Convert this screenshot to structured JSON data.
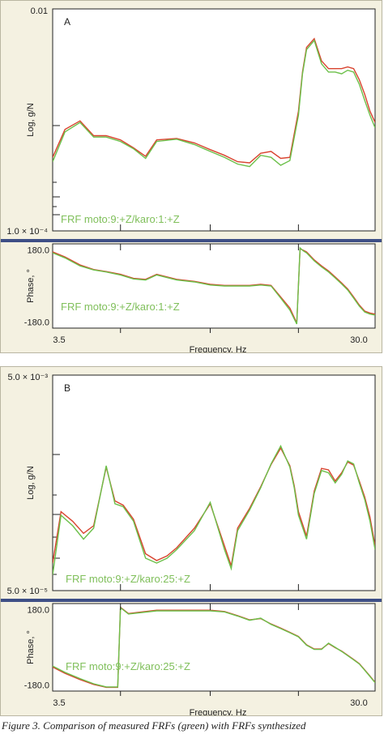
{
  "colors": {
    "measured": "#6cc04a",
    "synthesized": "#d9432f",
    "divider": "#3e4f86",
    "legend_text": "#7fbf5a",
    "plot_bg": "#ffffff",
    "panel_bg": "#f4f1e1"
  },
  "caption": "Figure 3. Comparison of measured FRFs (green) with FRFs synthesized",
  "chart_data": [
    {
      "type": "line",
      "panel_label": "A",
      "legend": "FRF moto:9:+Z/karo:1:+Z",
      "xlabel": "Frequency, Hz",
      "x_ticks": [
        "3.5",
        "30.0"
      ],
      "magnitude": {
        "ylabel": "Log, g/N",
        "y_ticks": [
          "0.01",
          "1.0 × 10⁻⁴"
        ],
        "y_scale": "log",
        "ylim": [
          0.0001,
          0.01
        ],
        "x": [
          3.5,
          3.8,
          4.2,
          4.6,
          5.0,
          5.5,
          6.0,
          6.5,
          7.0,
          8.0,
          9.0,
          10.0,
          11.0,
          12.0,
          13.0,
          14.0,
          15.0,
          16.0,
          17.0,
          18.0,
          18.5,
          19.0,
          20.0,
          21.0,
          22.0,
          23.0,
          24.0,
          25.0,
          26.0,
          27.0,
          28.0,
          29.0,
          30.0
        ],
        "series": [
          {
            "name": "measured",
            "values": [
              0.00042,
              0.00078,
              0.00095,
              0.0007,
              0.0007,
              0.00064,
              0.00055,
              0.00045,
              0.00064,
              0.00067,
              0.0006,
              0.00052,
              0.00046,
              0.0004,
              0.00038,
              0.00048,
              0.00046,
              0.00039,
              0.00043,
              0.0011,
              0.0026,
              0.0043,
              0.0052,
              0.0032,
              0.0027,
              0.0027,
              0.0026,
              0.0028,
              0.0027,
              0.0021,
              0.0015,
              0.0011,
              0.00085
            ]
          },
          {
            "name": "synthesized",
            "values": [
              0.00046,
              0.00082,
              0.00098,
              0.00072,
              0.00072,
              0.00066,
              0.00056,
              0.00047,
              0.00066,
              0.00068,
              0.00062,
              0.00054,
              0.00048,
              0.00042,
              0.00041,
              0.0005,
              0.00052,
              0.00045,
              0.00046,
              0.0012,
              0.0027,
              0.0045,
              0.0054,
              0.0034,
              0.0029,
              0.0029,
              0.0029,
              0.003,
              0.0029,
              0.0023,
              0.0017,
              0.0012,
              0.00095
            ]
          }
        ]
      },
      "phase": {
        "ylabel": "Phase, °",
        "y_ticks": [
          "180.0",
          "-180.0"
        ],
        "ylim": [
          -210,
          210
        ],
        "x": [
          3.5,
          3.8,
          4.2,
          4.6,
          5.0,
          5.5,
          6.0,
          6.5,
          7.0,
          8.0,
          9.0,
          10.0,
          11.0,
          12.0,
          13.0,
          14.0,
          15.0,
          16.0,
          17.0,
          17.8,
          18.2,
          18.6,
          19.0,
          20.0,
          21.0,
          22.0,
          23.0,
          24.0,
          25.0,
          26.0,
          27.0,
          28.0,
          29.0,
          30.0
        ],
        "series": [
          {
            "name": "measured",
            "values": [
              165,
              140,
              100,
              80,
              70,
              55,
              35,
              30,
              55,
              30,
              20,
              5,
              0,
              0,
              0,
              5,
              0,
              -60,
              -120,
              -190,
              190,
              175,
              165,
              125,
              95,
              70,
              40,
              10,
              -20,
              -60,
              -100,
              -130,
              -140,
              -145
            ]
          },
          {
            "name": "synthesized",
            "values": [
              170,
              145,
              105,
              82,
              72,
              58,
              38,
              33,
              58,
              33,
              23,
              8,
              3,
              3,
              3,
              8,
              3,
              -55,
              -110,
              -185,
              185,
              178,
              170,
              130,
              100,
              75,
              45,
              15,
              -15,
              -55,
              -95,
              -125,
              -135,
              -140
            ]
          }
        ]
      }
    },
    {
      "type": "line",
      "panel_label": "B",
      "legend": "FRF moto:9:+Z/karo:25:+Z",
      "xlabel": "Frequency, Hz",
      "x_ticks": [
        "3.5",
        "30.0"
      ],
      "magnitude": {
        "ylabel": "Log, g/N",
        "y_ticks": [
          "5.0 × 10⁻³",
          "5.0 × 10⁻⁵"
        ],
        "y_scale": "log",
        "ylim": [
          5e-05,
          0.005
        ],
        "x": [
          3.5,
          3.7,
          4.0,
          4.3,
          4.6,
          5.0,
          5.3,
          5.6,
          6.0,
          6.5,
          7.0,
          7.5,
          8.0,
          9.0,
          10.0,
          11.0,
          11.5,
          12.0,
          13.0,
          14.0,
          15.0,
          16.0,
          17.0,
          17.5,
          18.0,
          19.0,
          20.0,
          21.0,
          22.0,
          23.0,
          24.0,
          25.0,
          26.0,
          27.0,
          28.0,
          29.0,
          30.0
        ],
        "series": [
          {
            "name": "measured",
            "values": [
              7e-05,
              0.00025,
              0.0002,
              0.00015,
              0.00019,
              0.00072,
              0.00032,
              0.0003,
              0.00022,
              0.0001,
              9e-05,
              0.0001,
              0.00012,
              0.00018,
              0.00033,
              0.00012,
              8e-05,
              0.00018,
              0.00028,
              0.00045,
              0.00075,
              0.0011,
              0.0007,
              0.00045,
              0.00025,
              0.00015,
              0.0004,
              0.00065,
              0.00062,
              0.0005,
              0.0006,
              0.0008,
              0.00075,
              0.0005,
              0.00035,
              0.00022,
              0.00012
            ]
          },
          {
            "name": "synthesized",
            "values": [
              9e-05,
              0.00027,
              0.00022,
              0.00017,
              0.0002,
              0.0007,
              0.00034,
              0.00031,
              0.00023,
              0.00011,
              9.5e-05,
              0.000105,
              0.000125,
              0.00019,
              0.00032,
              0.00013,
              8.5e-05,
              0.00019,
              0.00029,
              0.00046,
              0.00074,
              0.00105,
              0.00072,
              0.00047,
              0.00027,
              0.00016,
              0.00042,
              0.00068,
              0.00066,
              0.00052,
              0.00062,
              0.00078,
              0.00073,
              0.00052,
              0.00037,
              0.00024,
              0.00013
            ]
          }
        ]
      },
      "phase": {
        "ylabel": "Phase, °",
        "y_ticks": [
          "180.0",
          "-180.0"
        ],
        "ylim": [
          -210,
          210
        ],
        "x": [
          3.5,
          3.8,
          4.2,
          4.6,
          5.0,
          5.4,
          5.5,
          5.8,
          6.2,
          7.0,
          8.0,
          9.0,
          10.0,
          11.0,
          12.0,
          13.0,
          14.0,
          15.0,
          16.0,
          17.0,
          18.0,
          19.0,
          20.0,
          21.0,
          22.0,
          23.0,
          24.0,
          25.0,
          26.0,
          27.0,
          28.0,
          29.0,
          30.0
        ],
        "series": [
          {
            "name": "measured",
            "values": [
              -90,
              -120,
              -150,
              -175,
              -190,
              -190,
              190,
              160,
              165,
              175,
              175,
              175,
              175,
              170,
              150,
              130,
              140,
              110,
              90,
              70,
              50,
              10,
              -10,
              -10,
              20,
              0,
              -20,
              -40,
              -60,
              -80,
              -110,
              -140,
              -170
            ]
          },
          {
            "name": "synthesized",
            "values": [
              -95,
              -125,
              -155,
              -178,
              -192,
              -192,
              192,
              162,
              168,
              178,
              178,
              178,
              178,
              172,
              152,
              132,
              138,
              112,
              92,
              72,
              52,
              12,
              -8,
              -8,
              18,
              -2,
              -18,
              -38,
              -58,
              -78,
              -108,
              -138,
              -168
            ]
          }
        ]
      }
    }
  ]
}
